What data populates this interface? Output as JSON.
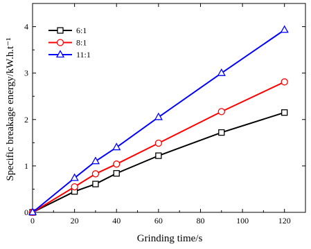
{
  "chart_data": {
    "type": "line",
    "title": "",
    "xlabel": "Grinding time/s",
    "ylabel": "Specific breakage energy/kW.h.t⁻¹",
    "xlim": [
      0,
      130
    ],
    "ylim": [
      0,
      4.5
    ],
    "x_ticks": [
      0,
      20,
      40,
      60,
      80,
      100,
      120
    ],
    "y_ticks": [
      0,
      1,
      2,
      3,
      4
    ],
    "grid": false,
    "legend_position": "top-left",
    "series": [
      {
        "name": "6:1",
        "color": "#000000",
        "marker": "square",
        "x": [
          0,
          20,
          30,
          40,
          60,
          90,
          120
        ],
        "y": [
          0,
          0.45,
          0.61,
          0.84,
          1.22,
          1.72,
          2.15
        ]
      },
      {
        "name": "8:1",
        "color": "#ff0000",
        "marker": "circle",
        "x": [
          0,
          20,
          30,
          40,
          60,
          90,
          120
        ],
        "y": [
          0,
          0.55,
          0.83,
          1.04,
          1.49,
          2.17,
          2.81
        ]
      },
      {
        "name": "11:1",
        "color": "#0000ff",
        "marker": "triangle",
        "x": [
          0,
          20,
          30,
          40,
          60,
          90,
          120
        ],
        "y": [
          0,
          0.74,
          1.1,
          1.4,
          2.05,
          3.0,
          3.93
        ]
      }
    ]
  }
}
